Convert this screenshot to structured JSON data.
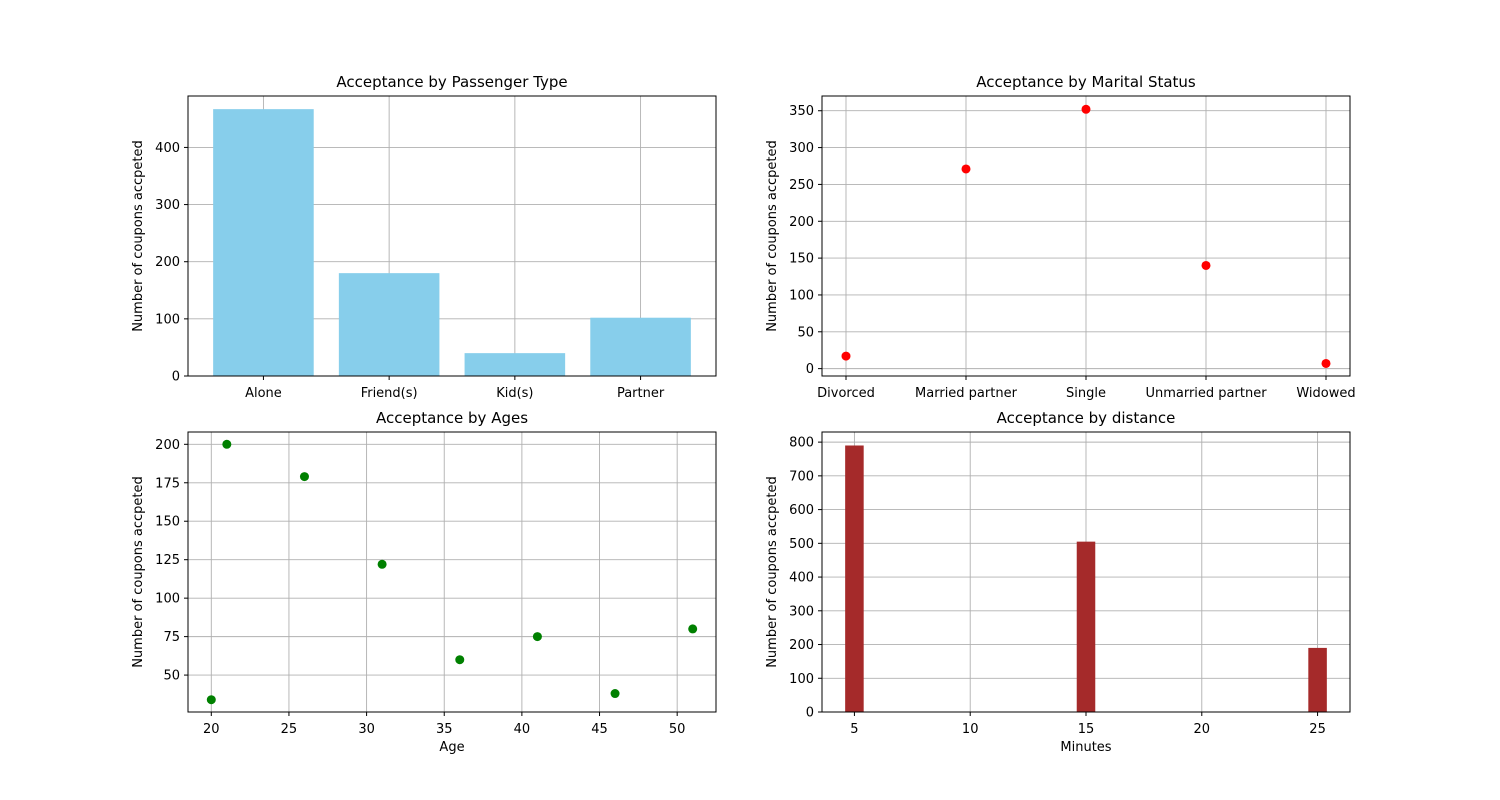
{
  "chart_data": [
    {
      "type": "bar",
      "title": "Acceptance by Passenger Type",
      "xlabel": "",
      "ylabel": "Number of coupons accpeted",
      "categories": [
        "Alone",
        "Friend(s)",
        "Kid(s)",
        "Partner"
      ],
      "values": [
        467,
        180,
        40,
        102
      ],
      "ylim": [
        0,
        490
      ],
      "yticks": [
        0,
        100,
        200,
        300,
        400
      ],
      "color": "#87ceeb",
      "grid": true
    },
    {
      "type": "scatter",
      "title": "Acceptance by Marital Status",
      "xlabel": "",
      "ylabel": "Number of coupons accpeted",
      "categories": [
        "Divorced",
        "Married partner",
        "Single",
        "Unmarried partner",
        "Widowed"
      ],
      "values": [
        17,
        271,
        352,
        140,
        7
      ],
      "ylim": [
        -10,
        370
      ],
      "yticks": [
        0,
        50,
        100,
        150,
        200,
        250,
        300,
        350
      ],
      "color": "#ff0000",
      "grid": true
    },
    {
      "type": "scatter",
      "title": "Acceptance by Ages",
      "xlabel": "Age",
      "ylabel": "Number of coupons accpeted",
      "x": [
        20,
        21,
        26,
        31,
        36,
        41,
        46,
        51
      ],
      "y": [
        34,
        200,
        179,
        122,
        60,
        75,
        38,
        80
      ],
      "xlim": [
        18.5,
        52.5
      ],
      "ylim": [
        26,
        208
      ],
      "xticks": [
        20,
        25,
        30,
        35,
        40,
        45,
        50
      ],
      "yticks": [
        50,
        75,
        100,
        125,
        150,
        175,
        200
      ],
      "color": "#008000",
      "grid": true
    },
    {
      "type": "bar",
      "title": "Acceptance by distance",
      "xlabel": "Minutes",
      "ylabel": "Number of coupons accpeted",
      "x": [
        5,
        15,
        25
      ],
      "values": [
        790,
        505,
        190
      ],
      "bar_width": 0.8,
      "xlim": [
        3.6,
        26.4
      ],
      "ylim": [
        0,
        830
      ],
      "xticks": [
        5,
        10,
        15,
        20,
        25
      ],
      "yticks": [
        0,
        100,
        200,
        300,
        400,
        500,
        600,
        700,
        800
      ],
      "color": "#a52a2a",
      "grid": true
    }
  ]
}
